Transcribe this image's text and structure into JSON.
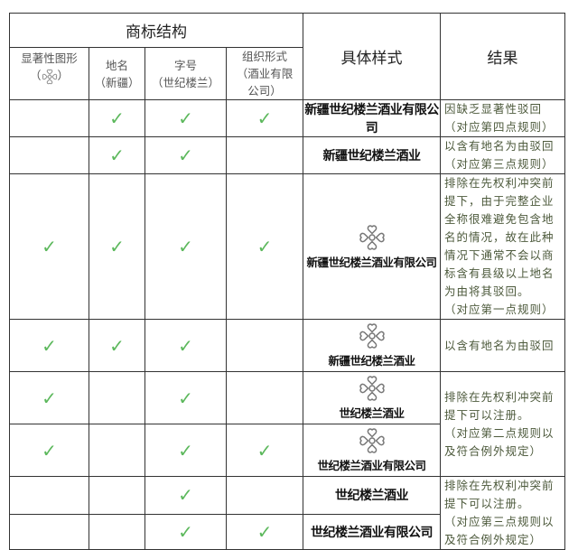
{
  "header": {
    "group_title": "商标结构",
    "columns": [
      {
        "label": "显著性图形",
        "sub": "（",
        "sub_end": "）"
      },
      {
        "label": "地名",
        "sub": "（新疆）"
      },
      {
        "label": "字号",
        "sub": "（世纪楼兰）"
      },
      {
        "label": "组织形式",
        "sub": "（酒业有限公司）"
      }
    ],
    "sample_title": "具体样式",
    "result_title": "结果"
  },
  "check_glyph": "✓",
  "check_color": "#5cb85c",
  "rows": [
    {
      "checks": [
        false,
        true,
        true,
        true
      ],
      "logo": false,
      "sample": "新疆世纪楼兰酒业有限公司",
      "result": "因缺乏显著性驳回\n（对应第四点规则）"
    },
    {
      "checks": [
        false,
        true,
        true,
        false
      ],
      "logo": false,
      "sample": "新疆世纪楼兰酒业",
      "result": "以含有地名为由驳回\n（对应第三点规则）"
    },
    {
      "checks": [
        true,
        true,
        true,
        true
      ],
      "logo": true,
      "sample": "新疆世纪楼兰酒业有限公司",
      "result": "排除在先权利冲突前提下，由于完整企业全称很难避免包含地名的情况，故在此种情况下通常不会以商标含有县级以上地名为由将其驳回。\n（对应第一点规则）"
    },
    {
      "checks": [
        true,
        true,
        true,
        false
      ],
      "logo": true,
      "sample": "新疆世纪楼兰酒业",
      "result": "以含有地名为由驳回"
    },
    {
      "checks": [
        true,
        false,
        true,
        false
      ],
      "logo": true,
      "sample": "世纪楼兰酒业",
      "result": "排除在先权利冲突前提下可以注册。\n（对应第二点规则以及符合例外规定）"
    },
    {
      "checks": [
        true,
        false,
        true,
        true
      ],
      "logo": true,
      "sample": "世纪楼兰酒业有限公司"
    },
    {
      "checks": [
        false,
        false,
        true,
        false
      ],
      "logo": false,
      "sample": "世纪楼兰酒业",
      "result": "排除在先权利冲突前提下可以注册。\n（对应第三点规则以及符合例外规定）"
    },
    {
      "checks": [
        false,
        false,
        true,
        true
      ],
      "logo": false,
      "sample": "世纪楼兰酒业有限公司"
    }
  ]
}
